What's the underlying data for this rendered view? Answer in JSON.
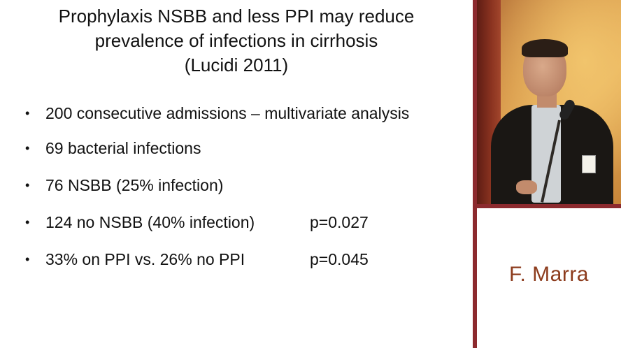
{
  "slide": {
    "title_lines": [
      "Prophylaxis NSBB and less PPI may reduce",
      "prevalence of infections in cirrhosis",
      "(Lucidi 2011)"
    ],
    "bullets": [
      {
        "text": "200 consecutive admissions – multivariate analysis",
        "p": ""
      },
      {
        "text": "69 bacterial infections",
        "p": ""
      },
      {
        "text": "76 NSBB (25% infection)",
        "p": ""
      },
      {
        "text": "124 no NSBB (40% infection)",
        "p": "p=0.027"
      },
      {
        "text": "33% on PPI vs. 26% no PPI",
        "p": "p=0.045"
      }
    ],
    "bullet_glyph": "•"
  },
  "speaker": {
    "name": "F. Marra"
  },
  "colors": {
    "accent": "#8c2a2e",
    "speaker_name": "#8c3b1c",
    "text": "#111111",
    "background": "#ffffff"
  }
}
